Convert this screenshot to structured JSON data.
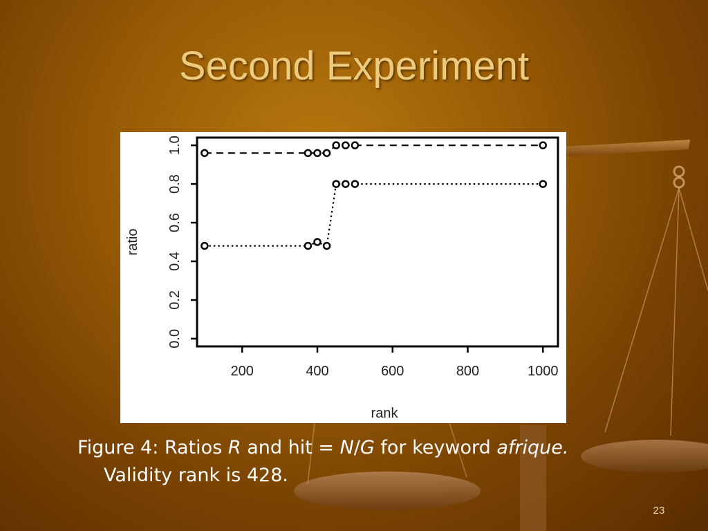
{
  "slide": {
    "title": "Second Experiment",
    "page_number": "23"
  },
  "caption": {
    "t1": "Figure 4: Ratios ",
    "t2": "R",
    "t3": " and hit = ",
    "t4": "N",
    "t5": "/",
    "t6": "G",
    "t7": " for keyword ",
    "t8": "afrique.",
    "line2": "Validity rank is 428."
  },
  "chart_data": {
    "type": "scatter",
    "xlabel": "rank",
    "ylabel": "ratio",
    "xlim": [
      80,
      1040
    ],
    "ylim": [
      -0.04,
      1.04
    ],
    "x_ticks": [
      200,
      400,
      600,
      800,
      1000
    ],
    "x_tick_labels": [
      "200",
      "400",
      "600",
      "800",
      "1000"
    ],
    "y_ticks": [
      0.0,
      0.2,
      0.4,
      0.6,
      0.8,
      1.0
    ],
    "y_tick_labels": [
      "0.0",
      "0.2",
      "0.4",
      "0.6",
      "0.8",
      "1.0"
    ],
    "grid": false,
    "series": [
      {
        "line_style": "dashed",
        "points": [
          [
            100,
            0.96
          ],
          [
            375,
            0.96
          ],
          [
            400,
            0.96
          ],
          [
            425,
            0.96
          ],
          [
            450,
            1.0
          ],
          [
            475,
            1.0
          ],
          [
            500,
            1.0
          ],
          [
            1000,
            1.0
          ]
        ]
      },
      {
        "line_style": "dotted",
        "points": [
          [
            100,
            0.48
          ],
          [
            375,
            0.48
          ],
          [
            400,
            0.5
          ],
          [
            425,
            0.48
          ],
          [
            450,
            0.8
          ],
          [
            475,
            0.8
          ],
          [
            500,
            0.8
          ],
          [
            1000,
            0.8
          ]
        ]
      }
    ]
  }
}
